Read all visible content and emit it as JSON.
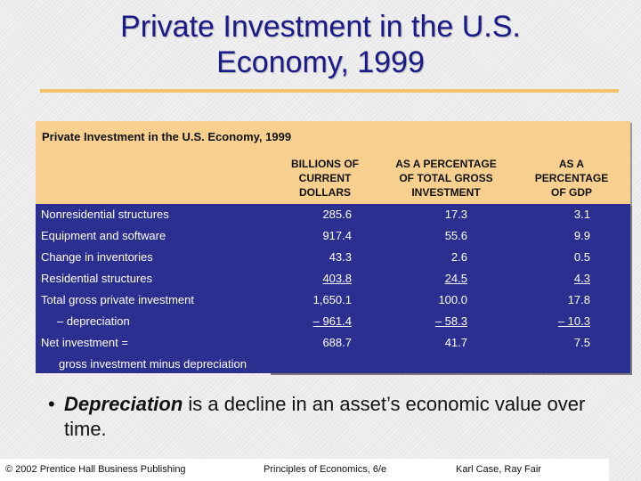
{
  "slide": {
    "title_line1": "Private Investment in the U.S.",
    "title_line2": "Economy, 1999"
  },
  "table": {
    "caption": "Private Investment in the U.S. Economy, 1999",
    "columns": [
      [
        "BILLIONS OF",
        "CURRENT",
        "DOLLARS"
      ],
      [
        "AS A PERCENTAGE",
        "OF TOTAL GROSS",
        "INVESTMENT"
      ],
      [
        "AS A",
        "PERCENTAGE",
        "OF GDP"
      ]
    ],
    "rows": [
      {
        "label": "Nonresidential structures",
        "values": [
          "285.6",
          "17.3",
          "3.1"
        ]
      },
      {
        "label": "Equipment and software",
        "values": [
          "917.4",
          "55.6",
          "9.9"
        ]
      },
      {
        "label": "Change in inventories",
        "values": [
          "43.3",
          "2.6",
          "0.5"
        ]
      },
      {
        "label": "Residential structures",
        "values": [
          "403.8",
          "24.5",
          "4.3"
        ]
      },
      {
        "label": "Total gross private investment",
        "values": [
          "1,650.1",
          "100.0",
          "17.8"
        ]
      },
      {
        "label": "– depreciation",
        "values": [
          "– 961.4",
          "– 58.3",
          "– 10.3"
        ]
      },
      {
        "label": "Net investment =",
        "values": [
          "688.7",
          "41.7",
          "7.5"
        ]
      }
    ],
    "note": "gross investment minus depreciation"
  },
  "bullet": {
    "symbol": "•",
    "term": "Depreciation",
    "rest": " is a decline in an asset’s economic value over time."
  },
  "footer": {
    "left": "© 2002 Prentice Hall Business Publishing",
    "center": "Principles of Economics, 6/e",
    "right": "Karl Case, Ray Fair"
  }
}
